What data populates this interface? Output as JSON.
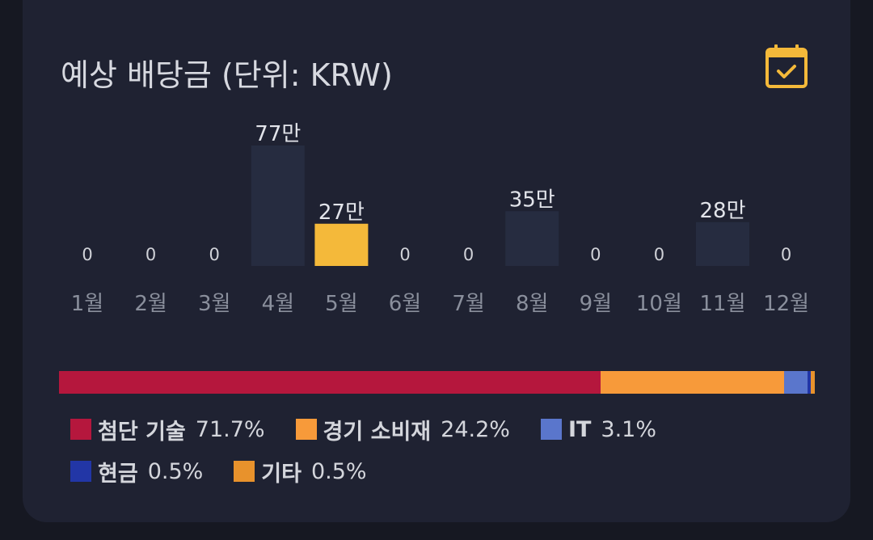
{
  "title": "예상 배당금 (단위: KRW)",
  "icons": {
    "calendar": "calendar-check-icon"
  },
  "colors": {
    "card_bg": "#1f2232",
    "bar_default": "#262c40",
    "bar_highlight": "#f4b93a",
    "text_muted": "#8a8f9c",
    "text_label": "#e2e4ea"
  },
  "chart_data": {
    "type": "bar",
    "categories": [
      "1월",
      "2월",
      "3월",
      "4월",
      "5월",
      "6월",
      "7월",
      "8월",
      "9월",
      "10월",
      "11월",
      "12월"
    ],
    "values": [
      0,
      0,
      0,
      770000,
      270000,
      0,
      0,
      350000,
      0,
      0,
      280000,
      0
    ],
    "value_labels": [
      "0",
      "0",
      "0",
      "77만",
      "27만",
      "0",
      "0",
      "35만",
      "0",
      "0",
      "28만",
      "0"
    ],
    "highlight_index": 4,
    "ylim": [
      0,
      770000
    ]
  },
  "allocation": {
    "type": "stacked-bar",
    "items": [
      {
        "name": "첨단 기술",
        "pct_label": "71.7%",
        "value": 71.7,
        "color": "#b5173d"
      },
      {
        "name": "경기 소비재",
        "pct_label": "24.2%",
        "value": 24.2,
        "color": "#f79a3a"
      },
      {
        "name": "IT",
        "pct_label": "3.1%",
        "value": 3.1,
        "color": "#5a76cc"
      },
      {
        "name": "현금",
        "pct_label": "0.5%",
        "value": 0.5,
        "color": "#2236a6"
      },
      {
        "name": "기타",
        "pct_label": "0.5%",
        "value": 0.5,
        "color": "#e8922c"
      }
    ]
  }
}
